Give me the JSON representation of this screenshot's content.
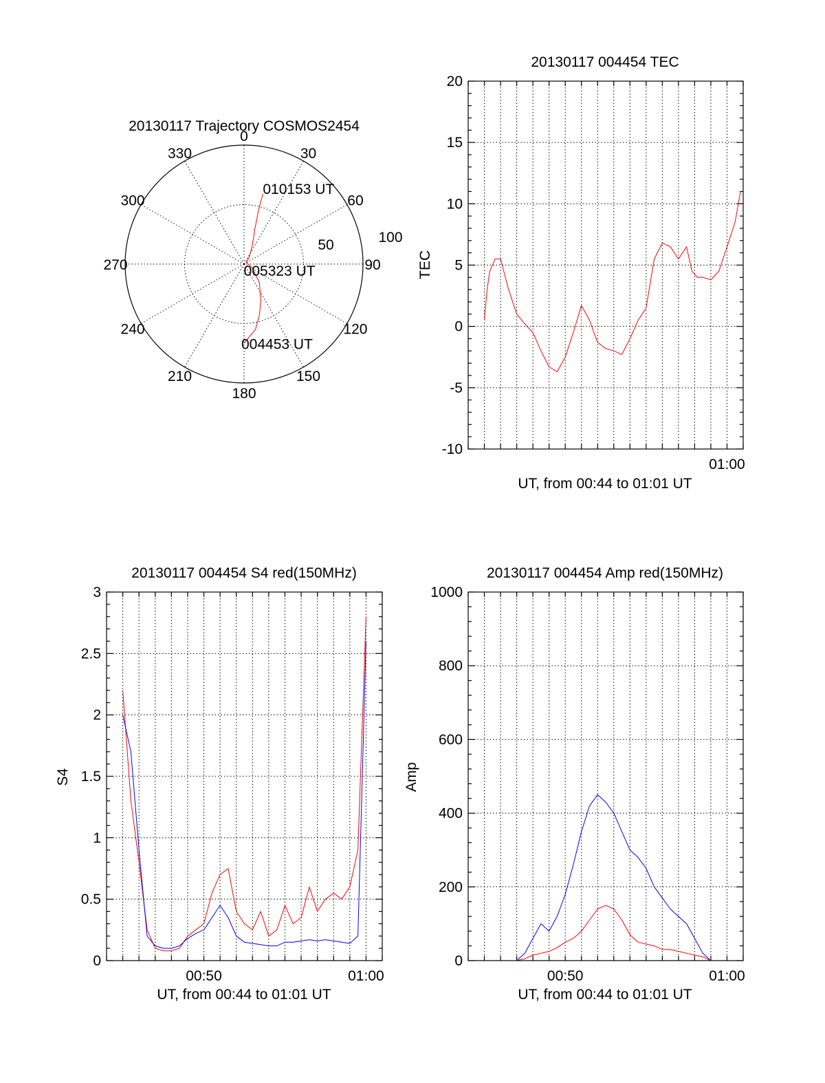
{
  "colors": {
    "red": "#ff0000",
    "blue": "#0000ff",
    "axes": "#000000",
    "background": "#ffffff"
  },
  "chart_data": [
    {
      "type": "polar",
      "title": "20130117 Trajectory COSMOS2454",
      "angle_labels": [
        "0",
        "30",
        "60",
        "90",
        "120",
        "150",
        "180",
        "210",
        "240",
        "270",
        "300",
        "330"
      ],
      "radius_labels": [
        "50",
        "100"
      ],
      "r_ticks": [
        50,
        100
      ],
      "angle_step_deg": 30,
      "grid": true,
      "series": [
        {
          "color": "#ff0000",
          "points_az_el": [
            [
              180,
              30
            ],
            [
              170,
              40
            ],
            [
              163,
              50
            ],
            [
              155,
              60
            ],
            [
              140,
              72
            ],
            [
              110,
              84
            ],
            [
              60,
              88
            ],
            [
              35,
              83
            ],
            [
              25,
              76
            ],
            [
              20,
              69
            ],
            [
              17,
              62
            ],
            [
              16,
              55
            ],
            [
              15,
              48
            ],
            [
              15,
              42
            ],
            [
              15,
              35
            ]
          ]
        }
      ],
      "annotations": [
        {
          "text": "010153 UT",
          "az": 15,
          "el": 35
        },
        {
          "text": "005323 UT",
          "az": 100,
          "el": 87
        },
        {
          "text": "004453 UT",
          "az": 180,
          "el": 30
        }
      ]
    },
    {
      "type": "line",
      "title": "20130117 004454 TEC",
      "xlabel": "UT, from 00:44 to 01:01 UT",
      "ylabel": "TEC",
      "xlim": [
        "00:44:00",
        "01:01:00"
      ],
      "ylim": [
        -10,
        20
      ],
      "x_tick_labels": [
        {
          "time": "01:00:00",
          "label": "01:00"
        }
      ],
      "y_tick_labels": [
        "-10",
        "-5",
        "0",
        "5",
        "10",
        "15",
        "20"
      ],
      "grid": true,
      "series": [
        {
          "color": "#ff0000",
          "x": [
            "00:45:00",
            "00:45:10",
            "00:45:20",
            "00:45:40",
            "00:46:00",
            "00:46:30",
            "00:47:00",
            "00:47:30",
            "00:48:00",
            "00:48:30",
            "00:49:00",
            "00:49:30",
            "00:50:00",
            "00:50:30",
            "00:51:00",
            "00:51:30",
            "00:52:00",
            "00:52:30",
            "00:53:00",
            "00:53:30",
            "00:54:00",
            "00:54:30",
            "00:55:00",
            "00:55:30",
            "00:56:00",
            "00:56:30",
            "00:57:00",
            "00:57:30",
            "00:57:50",
            "00:58:10",
            "00:58:30",
            "00:59:00",
            "00:59:30",
            "01:00:00",
            "01:00:30",
            "01:00:50"
          ],
          "y": [
            0.5,
            3.0,
            4.5,
            5.5,
            5.5,
            3.0,
            1.0,
            0.2,
            -0.5,
            -2.0,
            -3.3,
            -3.7,
            -2.5,
            -0.5,
            1.7,
            0.5,
            -1.3,
            -1.8,
            -2.0,
            -2.3,
            -1.0,
            0.5,
            1.5,
            5.5,
            6.8,
            6.5,
            5.5,
            6.5,
            4.5,
            4.0,
            4.0,
            3.8,
            4.5,
            6.5,
            8.5,
            11.0
          ]
        }
      ]
    },
    {
      "type": "line",
      "title": "20130117 004454 S4 red(150MHz)",
      "xlabel": "UT, from 00:44 to 01:01 UT",
      "ylabel": "S4",
      "xlim": [
        "00:44:00",
        "01:01:00"
      ],
      "ylim": [
        0,
        3
      ],
      "x_tick_labels": [
        {
          "time": "00:50:00",
          "label": "00:50"
        },
        {
          "time": "01:00:00",
          "label": "01:00"
        }
      ],
      "y_tick_labels": [
        "0",
        "0.5",
        "1",
        "1.5",
        "2",
        "2.5",
        "3"
      ],
      "grid": true,
      "series": [
        {
          "color": "#ff0000",
          "x": [
            "00:45:00",
            "00:45:30",
            "00:46:00",
            "00:46:30",
            "00:47:00",
            "00:47:30",
            "00:48:00",
            "00:48:30",
            "00:49:00",
            "00:49:30",
            "00:50:00",
            "00:50:30",
            "00:51:00",
            "00:51:30",
            "00:52:00",
            "00:52:30",
            "00:53:00",
            "00:53:30",
            "00:54:00",
            "00:54:30",
            "00:55:00",
            "00:55:30",
            "00:56:00",
            "00:56:30",
            "00:57:00",
            "00:57:30",
            "00:58:00",
            "00:58:30",
            "00:59:00",
            "00:59:30",
            "01:00:00"
          ],
          "y": [
            2.2,
            1.3,
            0.8,
            0.25,
            0.1,
            0.08,
            0.08,
            0.1,
            0.2,
            0.25,
            0.3,
            0.55,
            0.7,
            0.75,
            0.4,
            0.3,
            0.25,
            0.4,
            0.2,
            0.25,
            0.45,
            0.3,
            0.35,
            0.6,
            0.4,
            0.5,
            0.55,
            0.5,
            0.6,
            0.9,
            2.8
          ]
        },
        {
          "color": "#0000ff",
          "x": [
            "00:45:00",
            "00:45:30",
            "00:46:00",
            "00:46:30",
            "00:47:00",
            "00:47:30",
            "00:48:00",
            "00:48:30",
            "00:49:00",
            "00:49:30",
            "00:50:00",
            "00:50:30",
            "00:51:00",
            "00:51:30",
            "00:52:00",
            "00:52:30",
            "00:53:00",
            "00:53:30",
            "00:54:00",
            "00:54:30",
            "00:55:00",
            "00:55:30",
            "00:56:00",
            "00:56:30",
            "00:57:00",
            "00:57:30",
            "00:58:00",
            "00:58:30",
            "00:59:00",
            "00:59:30",
            "01:00:00"
          ],
          "y": [
            2.0,
            1.7,
            0.9,
            0.2,
            0.12,
            0.1,
            0.1,
            0.12,
            0.18,
            0.22,
            0.25,
            0.35,
            0.45,
            0.35,
            0.2,
            0.15,
            0.14,
            0.13,
            0.12,
            0.12,
            0.15,
            0.15,
            0.16,
            0.17,
            0.16,
            0.17,
            0.16,
            0.15,
            0.14,
            0.2,
            2.6
          ]
        }
      ]
    },
    {
      "type": "line",
      "title": "20130117 004454 Amp red(150MHz)",
      "xlabel": "UT, from 00:44 to 01:01 UT",
      "ylabel": "Amp",
      "xlim": [
        "00:44:00",
        "01:01:00"
      ],
      "ylim": [
        0,
        1000
      ],
      "x_tick_labels": [
        {
          "time": "00:50:00",
          "label": "00:50"
        },
        {
          "time": "01:00:00",
          "label": "01:00"
        }
      ],
      "y_tick_labels": [
        "0",
        "200",
        "400",
        "600",
        "800",
        "1000"
      ],
      "grid": true,
      "series": [
        {
          "color": "#0000ff",
          "x": [
            "00:45:00",
            "00:46:00",
            "00:47:00",
            "00:47:30",
            "00:48:00",
            "00:48:30",
            "00:49:00",
            "00:49:30",
            "00:50:00",
            "00:50:30",
            "00:51:00",
            "00:51:30",
            "00:52:00",
            "00:52:30",
            "00:53:00",
            "00:53:30",
            "00:54:00",
            "00:54:30",
            "00:55:00",
            "00:55:30",
            "00:56:00",
            "00:56:30",
            "00:57:00",
            "00:57:30",
            "00:58:00",
            "00:58:30",
            "00:59:00",
            "00:59:30",
            "01:00:00",
            "01:00:30",
            "01:00:50"
          ],
          "y": [
            0,
            0,
            0,
            20,
            60,
            100,
            80,
            120,
            180,
            260,
            350,
            420,
            450,
            430,
            400,
            350,
            300,
            280,
            250,
            200,
            170,
            140,
            120,
            100,
            60,
            20,
            0,
            0,
            0,
            0,
            0
          ]
        },
        {
          "color": "#ff0000",
          "x": [
            "00:45:00",
            "00:46:00",
            "00:47:00",
            "00:47:30",
            "00:48:00",
            "00:48:30",
            "00:49:00",
            "00:49:30",
            "00:50:00",
            "00:50:30",
            "00:51:00",
            "00:51:30",
            "00:52:00",
            "00:52:30",
            "00:53:00",
            "00:53:30",
            "00:54:00",
            "00:54:30",
            "00:55:00",
            "00:55:30",
            "00:56:00",
            "00:56:30",
            "00:57:00",
            "00:57:30",
            "00:58:00",
            "00:58:30",
            "00:59:00",
            "00:59:30",
            "01:00:00",
            "01:00:30",
            "01:00:50"
          ],
          "y": [
            0,
            0,
            0,
            5,
            15,
            20,
            25,
            35,
            50,
            60,
            80,
            110,
            140,
            150,
            140,
            110,
            70,
            50,
            45,
            40,
            30,
            30,
            25,
            20,
            15,
            10,
            0,
            0,
            0,
            0,
            0
          ]
        }
      ]
    }
  ]
}
